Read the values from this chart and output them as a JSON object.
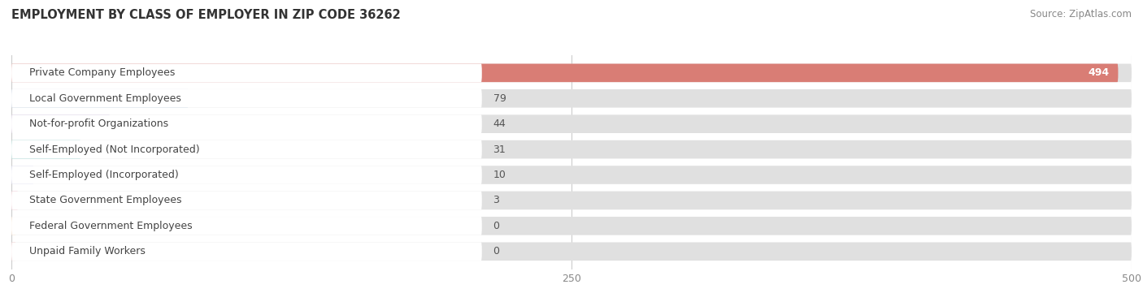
{
  "title": "EMPLOYMENT BY CLASS OF EMPLOYER IN ZIP CODE 36262",
  "source": "Source: ZipAtlas.com",
  "categories": [
    "Private Company Employees",
    "Local Government Employees",
    "Not-for-profit Organizations",
    "Self-Employed (Not Incorporated)",
    "Self-Employed (Incorporated)",
    "State Government Employees",
    "Federal Government Employees",
    "Unpaid Family Workers"
  ],
  "values": [
    494,
    79,
    44,
    31,
    10,
    3,
    0,
    0
  ],
  "bar_colors": [
    "#d9726a",
    "#a8bcd8",
    "#b89ac8",
    "#5bbcb0",
    "#a8a8d8",
    "#f0a0b0",
    "#f5c89a",
    "#e8a0a0"
  ],
  "xlim_max": 500,
  "xticks": [
    0,
    250,
    500
  ],
  "bar_bg_color": "#e0e0e0",
  "label_bg_color": "#ffffff",
  "title_fontsize": 10.5,
  "source_fontsize": 8.5,
  "label_fontsize": 9,
  "value_fontsize": 9
}
